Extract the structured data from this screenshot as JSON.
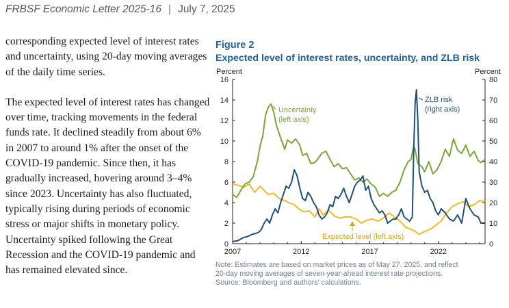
{
  "header": {
    "publication": "FRBSF Economic Letter 2025-16",
    "separator": "|",
    "date": "July 7, 2025"
  },
  "body": {
    "paragraph1": "corresponding expected level of interest rates and uncertainty, using 20-day moving averages of the daily time series.",
    "paragraph2": "The expected level of interest rates has changed over time, tracking movements in the federal funds rate. It declined steadily from about 6% in 2007 to around 1% after the onset of the COVID-19 pandemic. Since then, it has gradually increased, hovering around 3–4% since 2023. Uncertainty has also fluctuated, typically rising during periods of economic stress or major shifts in monetary policy. Uncertainty spiked following the Great Recession and the COVID-19 pandemic and has remained elevated since."
  },
  "figure": {
    "label": "Figure 2",
    "title": "Expected level of interest rates, uncertainty, and ZLB risk",
    "note_line1": "Note: Estimates are based on market prices as of May 27, 2025, and reflect",
    "note_line2": "20-day moving averages of seven-year-ahead interest rate projections.",
    "note_line3": "Source: Bloomberg and authors' calculations."
  },
  "colors": {
    "uncertainty": "#7aa636",
    "zlb": "#1f4e7a",
    "expected": "#f2b81c",
    "title": "#1f5f9e"
  },
  "chart_data": {
    "type": "line",
    "title": "Expected level of interest rates, uncertainty, and ZLB risk",
    "left_axis_label": "Percent",
    "right_axis_label": "Percent",
    "left_ylim": [
      0,
      16
    ],
    "right_ylim": [
      0,
      80
    ],
    "left_ticks": [
      "0",
      "2",
      "4",
      "6",
      "8",
      "10",
      "12",
      "14",
      "16"
    ],
    "right_ticks": [
      "0",
      "10",
      "20",
      "30",
      "40",
      "50",
      "60",
      "70",
      "80"
    ],
    "x_ticks": [
      "2007",
      "2012",
      "2017",
      "2022"
    ],
    "xlim": [
      2007,
      2025.4
    ],
    "annotations": {
      "uncertainty_line1": "Uncertainty",
      "uncertainty_line2": "(left axis)",
      "zlb_line1": "ZLB risk",
      "zlb_line2": "(right axis)",
      "expected": "Expected level (left axis)"
    },
    "series": [
      {
        "name": "Uncertainty (left axis)",
        "axis": "left",
        "x": [
          2007.0,
          2007.3,
          2007.6,
          2007.9,
          2008.2,
          2008.5,
          2008.8,
          2009.0,
          2009.2,
          2009.4,
          2009.6,
          2009.8,
          2010.0,
          2010.2,
          2010.5,
          2010.8,
          2011.0,
          2011.3,
          2011.6,
          2011.9,
          2012.1,
          2012.4,
          2012.7,
          2013.0,
          2013.3,
          2013.5,
          2013.8,
          2014.1,
          2014.4,
          2014.7,
          2015.0,
          2015.3,
          2015.6,
          2015.9,
          2016.2,
          2016.5,
          2016.8,
          2017.1,
          2017.4,
          2017.7,
          2018.0,
          2018.3,
          2018.6,
          2018.9,
          2019.2,
          2019.5,
          2019.8,
          2020.0,
          2020.2,
          2020.3,
          2020.5,
          2020.8,
          2021.0,
          2021.3,
          2021.6,
          2021.9,
          2022.2,
          2022.5,
          2022.8,
          2023.1,
          2023.4,
          2023.7,
          2024.0,
          2024.3,
          2024.6,
          2024.9,
          2025.1,
          2025.4
        ],
        "values": [
          4.8,
          4.5,
          5.2,
          5.8,
          6.0,
          6.5,
          8.0,
          9.5,
          10.5,
          12.5,
          13.3,
          13.6,
          12.8,
          11.5,
          10.3,
          9.2,
          10.1,
          9.8,
          10.2,
          9.6,
          8.6,
          8.8,
          7.8,
          7.9,
          8.4,
          8.8,
          9.0,
          8.2,
          7.5,
          7.8,
          7.3,
          7.4,
          6.8,
          6.2,
          6.4,
          6.0,
          6.3,
          5.8,
          5.5,
          4.6,
          4.9,
          4.6,
          5.0,
          5.2,
          6.0,
          7.2,
          8.0,
          8.2,
          9.5,
          9.2,
          7.8,
          7.5,
          7.0,
          8.0,
          6.8,
          7.2,
          8.0,
          9.2,
          8.5,
          10.2,
          9.1,
          8.8,
          9.6,
          8.5,
          9.0,
          8.1,
          7.9,
          8.2
        ]
      },
      {
        "name": "ZLB risk (right axis)",
        "axis": "right",
        "x": [
          2007.0,
          2007.4,
          2007.8,
          2008.1,
          2008.4,
          2008.7,
          2008.9,
          2009.1,
          2009.3,
          2009.5,
          2009.7,
          2009.9,
          2010.1,
          2010.3,
          2010.5,
          2010.7,
          2010.9,
          2011.1,
          2011.3,
          2011.5,
          2011.7,
          2011.9,
          2012.1,
          2012.3,
          2012.5,
          2012.7,
          2012.9,
          2013.1,
          2013.3,
          2013.5,
          2013.7,
          2013.9,
          2014.1,
          2014.3,
          2014.5,
          2014.7,
          2014.9,
          2015.1,
          2015.3,
          2015.5,
          2015.7,
          2015.9,
          2016.1,
          2016.3,
          2016.5,
          2016.7,
          2016.9,
          2017.1,
          2017.3,
          2017.5,
          2017.7,
          2017.9,
          2018.1,
          2018.3,
          2018.5,
          2018.7,
          2018.9,
          2019.1,
          2019.3,
          2019.5,
          2019.7,
          2019.9,
          2020.1,
          2020.2,
          2020.3,
          2020.4,
          2020.5,
          2020.6,
          2020.8,
          2021.0,
          2021.2,
          2021.4,
          2021.6,
          2021.8,
          2022.0,
          2022.2,
          2022.5,
          2022.8,
          2023.1,
          2023.4,
          2023.7,
          2024.0,
          2024.3,
          2024.6,
          2024.9,
          2025.1,
          2025.4
        ],
        "values": [
          1,
          1.5,
          3,
          3.5,
          4.5,
          5,
          5.5,
          7,
          10,
          12,
          10,
          14,
          17,
          15,
          20,
          24,
          28,
          27,
          30,
          36,
          33,
          27,
          22,
          21,
          25,
          23,
          20,
          18,
          14,
          12,
          13,
          15,
          19,
          18,
          23,
          22,
          24,
          27,
          23,
          20,
          24,
          28,
          30,
          31,
          33,
          26,
          28,
          22,
          19,
          17,
          15,
          16,
          14,
          10,
          11,
          12,
          12,
          14,
          17,
          13,
          12,
          11,
          13,
          45,
          68,
          75,
          60,
          35,
          28,
          25,
          26,
          22,
          20,
          16,
          14,
          17,
          15,
          12,
          11,
          14,
          10,
          22,
          17,
          14,
          13,
          10,
          10
        ]
      },
      {
        "name": "Expected level (left axis)",
        "axis": "left",
        "x": [
          2007.0,
          2007.4,
          2007.8,
          2008.2,
          2008.6,
          2009.0,
          2009.3,
          2009.6,
          2010.0,
          2010.4,
          2010.8,
          2011.1,
          2011.5,
          2011.9,
          2012.2,
          2012.6,
          2013.0,
          2013.3,
          2013.6,
          2014.0,
          2014.4,
          2014.8,
          2015.2,
          2015.6,
          2016.0,
          2016.4,
          2016.8,
          2017.2,
          2017.6,
          2018.0,
          2018.4,
          2018.8,
          2019.2,
          2019.6,
          2020.0,
          2020.3,
          2020.6,
          2021.0,
          2021.4,
          2021.8,
          2022.2,
          2022.6,
          2023.0,
          2023.4,
          2023.8,
          2024.2,
          2024.6,
          2025.0,
          2025.4
        ],
        "values": [
          5.8,
          5.7,
          5.5,
          5.8,
          5.0,
          5.6,
          5.2,
          4.8,
          4.9,
          4.4,
          4.2,
          4.0,
          3.8,
          3.3,
          3.1,
          3.2,
          2.6,
          3.4,
          2.8,
          3.3,
          2.7,
          2.5,
          2.6,
          2.6,
          2.4,
          2.0,
          2.3,
          2.4,
          2.2,
          2.5,
          3.0,
          2.6,
          2.2,
          1.6,
          1.4,
          1.2,
          0.9,
          1.2,
          1.4,
          1.8,
          2.2,
          3.0,
          3.6,
          3.9,
          4.1,
          3.6,
          3.8,
          4.2,
          4.1
        ]
      }
    ]
  }
}
